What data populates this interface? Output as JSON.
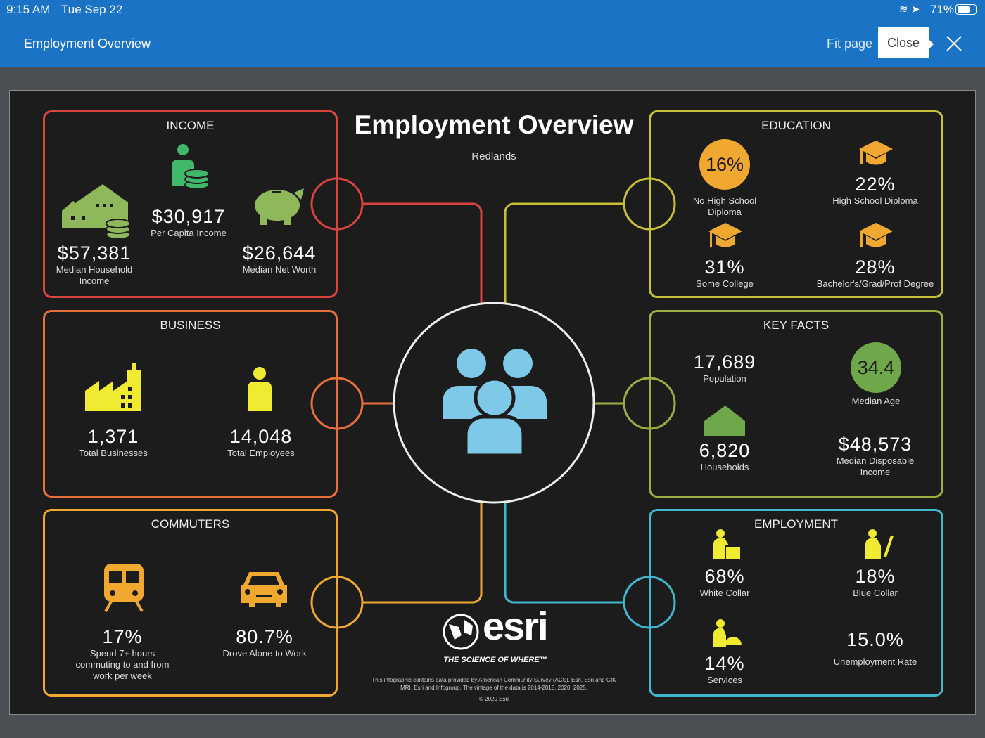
{
  "status_bar": {
    "time": "9:15 AM",
    "date": "Tue Sep 22",
    "battery": "71%"
  },
  "header": {
    "title": "Employment Overview",
    "fit_page": "Fit page",
    "close_tooltip": "Close"
  },
  "infographic": {
    "title": "Employment Overview",
    "location": "Redlands",
    "income": {
      "title": "INCOME",
      "per_capita": {
        "value": "$30,917",
        "label": "Per Capita Income"
      },
      "median_household": {
        "value": "$57,381",
        "label1": "Median Household",
        "label2": "Income"
      },
      "net_worth": {
        "value": "$26,644",
        "label": "Median Net Worth"
      }
    },
    "business": {
      "title": "BUSINESS",
      "businesses": {
        "value": "1,371",
        "label": "Total Businesses"
      },
      "employees": {
        "value": "14,048",
        "label": "Total Employees"
      }
    },
    "commuters": {
      "title": "COMMUTERS",
      "spend": {
        "value": "17%",
        "label1": "Spend 7+ hours",
        "label2": "commuting to and from",
        "label3": "work per week"
      },
      "drove": {
        "value": "80.7%",
        "label": "Drove Alone to Work"
      }
    },
    "education": {
      "title": "EDUCATION",
      "no_hs": {
        "value": "16%",
        "label1": "No High School",
        "label2": "Diploma"
      },
      "hs": {
        "value": "22%",
        "label": "High School Diploma"
      },
      "some_college": {
        "value": "31%",
        "label": "Some College"
      },
      "bachelors": {
        "value": "28%",
        "label": "Bachelor's/Grad/Prof Degree"
      }
    },
    "key_facts": {
      "title": "KEY FACTS",
      "population": {
        "value": "17,689",
        "label": "Population"
      },
      "median_age": {
        "value": "34.4",
        "label": "Median Age"
      },
      "households": {
        "value": "6,820",
        "label": "Households"
      },
      "disposable": {
        "value": "$48,573",
        "label1": "Median Disposable",
        "label2": "Income"
      }
    },
    "employment": {
      "title": "EMPLOYMENT",
      "white": {
        "value": "68%",
        "label": "White Collar"
      },
      "blue": {
        "value": "18%",
        "label": "Blue Collar"
      },
      "services": {
        "value": "14%",
        "label": "Services"
      },
      "unemployment": {
        "value": "15.0%",
        "label": "Unemployment Rate"
      }
    },
    "logo": {
      "brand": "esri",
      "tagline": "THE SCIENCE OF WHERE™"
    },
    "footer": {
      "line1": "This infographic contains data provided by American Community Survey (ACS), Esri, Esri and GfK",
      "line2": "MRI, Esri and Infogroup. The vintage of the data is 2014-2018, 2020, 2025.",
      "copyright": "© 2020 Esri"
    }
  },
  "colors": {
    "income": "#d9443f",
    "business": "#e8703a",
    "commuters": "#f0a830",
    "education": "#c8c034",
    "key_facts": "#9bb040",
    "employment": "#40b8d0",
    "header": "#1a73c4"
  }
}
